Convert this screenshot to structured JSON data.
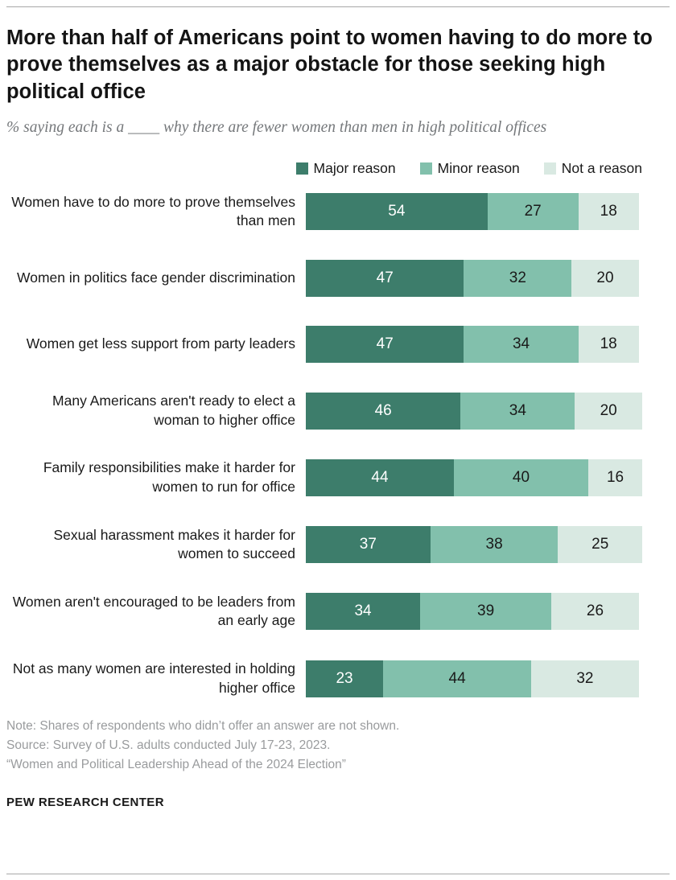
{
  "header": {
    "title": "More than half of Americans point to women having to do more to prove themselves as a major obstacle for those seeking high political office",
    "subtitle": "% saying each is a ____ why there are fewer women than men in high political offices"
  },
  "legend": [
    {
      "label": "Major reason",
      "color": "#3d7d6b"
    },
    {
      "label": "Minor reason",
      "color": "#82c0ac"
    },
    {
      "label": "Not a reason",
      "color": "#d9e9e2"
    }
  ],
  "chart_data": {
    "type": "bar",
    "stacked": true,
    "orientation": "horizontal",
    "title": "More than half of Americans point to women having to do more to prove themselves as a major obstacle for those seeking high political office",
    "xlim": [
      0,
      100
    ],
    "grid": false,
    "legend_position": "top-right",
    "categories": [
      "Women have to do more to prove themselves than men",
      "Women in politics face gender discrimination",
      "Women get less support from party leaders",
      "Many Americans aren't ready to elect a woman to higher office",
      "Family responsibilities make it harder for women to run for office",
      "Sexual harassment makes it harder for women to succeed",
      "Women aren't encouraged to be leaders from an early age",
      "Not as many women are interested in holding higher office"
    ],
    "series": [
      {
        "name": "Major reason",
        "color": "#3d7d6b",
        "text_color": "#ffffff",
        "values": [
          54,
          47,
          47,
          46,
          44,
          37,
          34,
          23
        ]
      },
      {
        "name": "Minor reason",
        "color": "#82c0ac",
        "text_color": "#1a1a1a",
        "values": [
          27,
          32,
          34,
          34,
          40,
          38,
          39,
          44
        ]
      },
      {
        "name": "Not a reason",
        "color": "#d9e9e2",
        "text_color": "#1a1a1a",
        "values": [
          18,
          20,
          18,
          20,
          16,
          25,
          26,
          32
        ]
      }
    ]
  },
  "footer": {
    "note": "Note: Shares of respondents who didn’t offer an answer are not shown.",
    "source": "Source: Survey of U.S. adults conducted July 17-23, 2023.",
    "report": "“Women and Political Leadership Ahead of the 2024 Election”",
    "brand": "PEW RESEARCH CENTER"
  }
}
